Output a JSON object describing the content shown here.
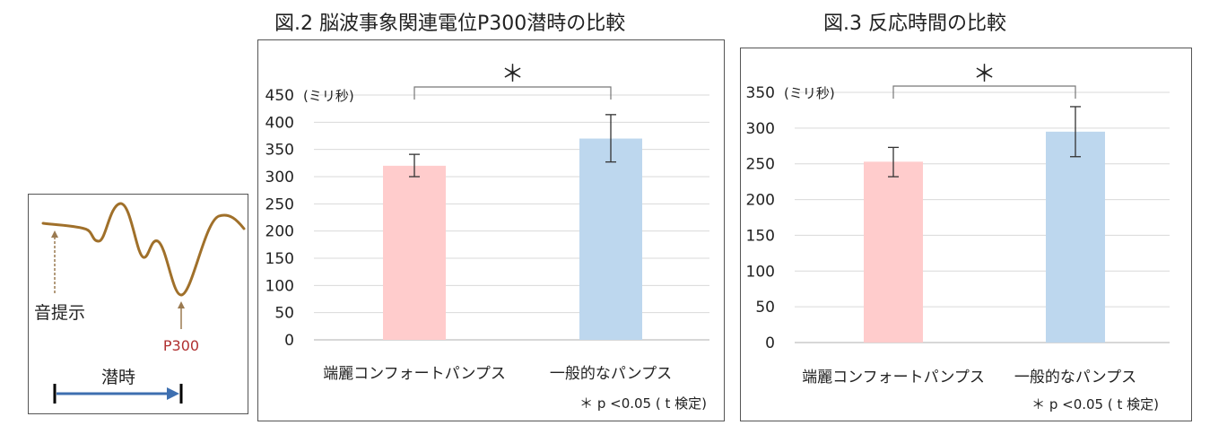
{
  "erp_diagram": {
    "stimulus_label": "音提示",
    "peak_label": "P300",
    "latency_label": "潜時",
    "waveform_color": "#a0702a",
    "arrow_color": "#3e6fb0",
    "peak_label_color": "#b03030"
  },
  "chart_data": [
    {
      "type": "bar",
      "title": "図.2  脳波事象関連電位P300潜時の比較",
      "ylabel": "(ミリ秒)",
      "categories": [
        "端麗コンフォートパンプス",
        "一般的なパンプス"
      ],
      "values": [
        320,
        370
      ],
      "error_low": [
        300,
        327
      ],
      "error_high": [
        341,
        414
      ],
      "bar_colors": [
        "#ffcccc",
        "#bdd7ee"
      ],
      "ylim": [
        0,
        450
      ],
      "yticks": [
        0,
        50,
        100,
        150,
        200,
        250,
        300,
        350,
        400,
        450
      ],
      "grid": true,
      "significance_mark": "＊",
      "footnote": "＊ p <0.05 ( t 検定)"
    },
    {
      "type": "bar",
      "title": "図.3  反応時間の比較",
      "ylabel": "(ミリ秒)",
      "categories": [
        "端麗コンフォートパンプス",
        "一般的なパンプス"
      ],
      "values": [
        253,
        295
      ],
      "error_low": [
        232,
        260
      ],
      "error_high": [
        273,
        330
      ],
      "bar_colors": [
        "#ffcccc",
        "#bdd7ee"
      ],
      "ylim": [
        0,
        350
      ],
      "yticks": [
        0,
        50,
        100,
        150,
        200,
        250,
        300,
        350
      ],
      "grid": true,
      "significance_mark": "＊",
      "footnote": "＊ p <0.05 ( t 検定)"
    }
  ]
}
